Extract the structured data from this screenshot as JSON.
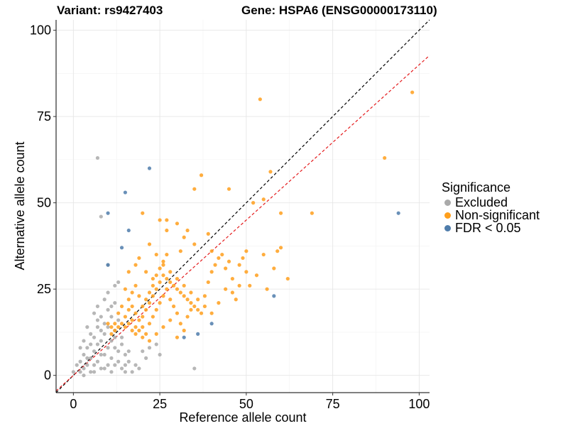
{
  "header": {
    "variant_text": "Variant: rs9427403",
    "gene_text": "Gene: HSPA6 (ENSG00000173110)"
  },
  "legend": {
    "title": "Significance",
    "items": [
      {
        "label": "Excluded",
        "color": "#aaaaaa"
      },
      {
        "label": "Non-significant",
        "color": "#ff9f1c"
      },
      {
        "label": "FDR < 0.05",
        "color": "#4f7dab"
      }
    ]
  },
  "chart_data": {
    "type": "scatter",
    "title": "Variant: rs9427403    Gene: HSPA6 (ENSG00000173110)",
    "xlabel": "Reference allele count",
    "ylabel": "Alternative allele count",
    "xlim": [
      -5,
      103
    ],
    "ylim": [
      -5,
      103
    ],
    "xticks": [
      0,
      25,
      50,
      75,
      100
    ],
    "yticks": [
      0,
      25,
      50,
      75,
      100
    ],
    "grid": true,
    "legend_position": "right",
    "reference_lines": [
      {
        "name": "identity",
        "slope": 1.0,
        "intercept": 0,
        "color": "#000000",
        "style": "dashed"
      },
      {
        "name": "fit",
        "slope": 0.9,
        "intercept": 0,
        "color": "#e41a1c",
        "style": "dashed"
      }
    ],
    "series": [
      {
        "name": "Excluded",
        "color": "#aaaaaa",
        "points": [
          [
            7,
            63
          ],
          [
            8,
            46
          ],
          [
            35,
            2
          ],
          [
            10,
            32
          ],
          [
            0,
            1
          ],
          [
            1,
            3
          ],
          [
            2,
            1
          ],
          [
            2,
            4
          ],
          [
            3,
            2
          ],
          [
            3,
            6
          ],
          [
            4,
            3
          ],
          [
            4,
            8
          ],
          [
            5,
            5
          ],
          [
            5,
            1
          ],
          [
            6,
            7
          ],
          [
            6,
            3
          ],
          [
            7,
            9
          ],
          [
            7,
            4
          ],
          [
            8,
            6
          ],
          [
            8,
            10
          ],
          [
            9,
            2
          ],
          [
            9,
            12
          ],
          [
            10,
            8
          ],
          [
            10,
            14
          ],
          [
            11,
            5
          ],
          [
            11,
            10
          ],
          [
            12,
            13
          ],
          [
            12,
            3
          ],
          [
            13,
            16
          ],
          [
            13,
            7
          ],
          [
            14,
            11
          ],
          [
            14,
            2
          ],
          [
            15,
            6
          ],
          [
            16,
            4
          ],
          [
            17,
            1
          ],
          [
            18,
            3
          ],
          [
            19,
            2
          ],
          [
            20,
            7
          ],
          [
            21,
            5
          ],
          [
            22,
            8
          ],
          [
            3,
            10
          ],
          [
            4,
            14
          ],
          [
            5,
            12
          ],
          [
            6,
            18
          ],
          [
            7,
            20
          ],
          [
            8,
            17
          ],
          [
            9,
            22
          ],
          [
            10,
            24
          ],
          [
            11,
            20
          ],
          [
            12,
            26
          ],
          [
            13,
            27
          ],
          [
            2,
            8
          ],
          [
            6,
            11
          ],
          [
            8,
            13
          ],
          [
            9,
            6
          ],
          [
            10,
            3
          ],
          [
            11,
            17
          ],
          [
            12,
            8
          ],
          [
            13,
            4
          ],
          [
            7,
            14
          ],
          [
            6,
            1
          ],
          [
            5,
            9
          ],
          [
            4,
            5
          ],
          [
            3,
            0
          ],
          [
            15,
            1
          ],
          [
            16,
            7
          ],
          [
            24,
            9
          ],
          [
            25,
            6
          ],
          [
            11,
            1
          ],
          [
            12,
            11
          ],
          [
            9,
            15
          ],
          [
            8,
            2
          ],
          [
            7,
            16
          ],
          [
            10,
            19
          ],
          [
            12,
            21
          ],
          [
            14,
            9
          ],
          [
            15,
            3
          ]
        ]
      },
      {
        "name": "Non-significant",
        "color": "#ff9f1c",
        "points": [
          [
            54,
            80
          ],
          [
            98,
            82
          ],
          [
            90,
            63
          ],
          [
            37,
            58
          ],
          [
            35,
            54
          ],
          [
            45,
            54
          ],
          [
            52,
            50
          ],
          [
            55,
            51
          ],
          [
            60,
            47
          ],
          [
            69,
            47
          ],
          [
            57,
            59
          ],
          [
            20,
            47
          ],
          [
            25,
            45
          ],
          [
            27,
            42
          ],
          [
            30,
            44
          ],
          [
            32,
            40
          ],
          [
            35,
            38
          ],
          [
            40,
            36
          ],
          [
            45,
            33
          ],
          [
            50,
            30
          ],
          [
            55,
            35
          ],
          [
            60,
            37
          ],
          [
            59,
            36
          ],
          [
            22,
            38
          ],
          [
            24,
            35
          ],
          [
            26,
            32
          ],
          [
            28,
            30
          ],
          [
            30,
            28
          ],
          [
            32,
            26
          ],
          [
            34,
            24
          ],
          [
            36,
            22
          ],
          [
            38,
            20
          ],
          [
            40,
            18
          ],
          [
            42,
            21
          ],
          [
            44,
            25
          ],
          [
            46,
            28
          ],
          [
            48,
            26
          ],
          [
            15,
            25
          ],
          [
            16,
            22
          ],
          [
            17,
            20
          ],
          [
            18,
            18
          ],
          [
            19,
            16
          ],
          [
            20,
            14
          ],
          [
            21,
            12
          ],
          [
            22,
            15
          ],
          [
            23,
            17
          ],
          [
            24,
            19
          ],
          [
            25,
            21
          ],
          [
            26,
            23
          ],
          [
            27,
            25
          ],
          [
            28,
            22
          ],
          [
            29,
            20
          ],
          [
            30,
            18
          ],
          [
            31,
            15
          ],
          [
            32,
            13
          ],
          [
            33,
            17
          ],
          [
            34,
            19
          ],
          [
            14,
            15
          ],
          [
            13,
            14
          ],
          [
            12,
            13
          ],
          [
            11,
            12
          ],
          [
            16,
            15
          ],
          [
            17,
            16
          ],
          [
            18,
            14
          ],
          [
            19,
            13
          ],
          [
            20,
            17
          ],
          [
            21,
            19
          ],
          [
            22,
            21
          ],
          [
            23,
            23
          ],
          [
            24,
            25
          ],
          [
            25,
            27
          ],
          [
            26,
            29
          ],
          [
            27,
            28
          ],
          [
            28,
            27
          ],
          [
            29,
            26
          ],
          [
            30,
            25
          ],
          [
            31,
            24
          ],
          [
            32,
            23
          ],
          [
            33,
            22
          ],
          [
            34,
            21
          ],
          [
            35,
            20
          ],
          [
            36,
            19
          ],
          [
            37,
            18
          ],
          [
            38,
            23
          ],
          [
            39,
            27
          ],
          [
            40,
            30
          ],
          [
            41,
            32
          ],
          [
            42,
            34
          ],
          [
            43,
            35
          ],
          [
            44,
            31
          ],
          [
            46,
            24
          ],
          [
            47,
            22
          ],
          [
            48,
            32
          ],
          [
            49,
            34
          ],
          [
            50,
            36
          ],
          [
            51,
            26
          ],
          [
            53,
            29
          ],
          [
            56,
            25
          ],
          [
            58,
            31
          ],
          [
            62,
            28
          ],
          [
            16,
            30
          ],
          [
            18,
            32
          ],
          [
            19,
            34
          ],
          [
            21,
            30
          ],
          [
            23,
            28
          ],
          [
            13,
            18
          ],
          [
            14,
            20
          ],
          [
            15,
            17
          ],
          [
            16,
            19
          ],
          [
            17,
            24
          ],
          [
            18,
            26
          ],
          [
            19,
            23
          ],
          [
            20,
            20
          ],
          [
            21,
            22
          ],
          [
            22,
            24
          ],
          [
            23,
            26
          ],
          [
            24,
            29
          ],
          [
            25,
            31
          ],
          [
            26,
            33
          ],
          [
            27,
            35
          ],
          [
            15,
            14
          ],
          [
            17,
            13
          ],
          [
            18,
            12
          ],
          [
            20,
            11
          ],
          [
            22,
            10
          ],
          [
            24,
            12
          ],
          [
            26,
            14
          ],
          [
            28,
            16
          ],
          [
            30,
            11
          ],
          [
            12,
            15
          ],
          [
            11,
            14
          ],
          [
            10,
            15
          ],
          [
            27,
            45
          ],
          [
            33,
            42
          ],
          [
            31,
            36
          ],
          [
            39,
            41
          ]
        ]
      },
      {
        "name": "FDR < 0.05",
        "color": "#4f7dab",
        "points": [
          [
            22,
            60
          ],
          [
            15,
            53
          ],
          [
            10,
            47
          ],
          [
            16,
            42
          ],
          [
            94,
            47
          ],
          [
            58,
            23
          ],
          [
            40,
            15
          ],
          [
            36,
            12
          ],
          [
            32,
            11
          ],
          [
            14,
            37
          ],
          [
            10,
            32
          ]
        ]
      }
    ]
  }
}
